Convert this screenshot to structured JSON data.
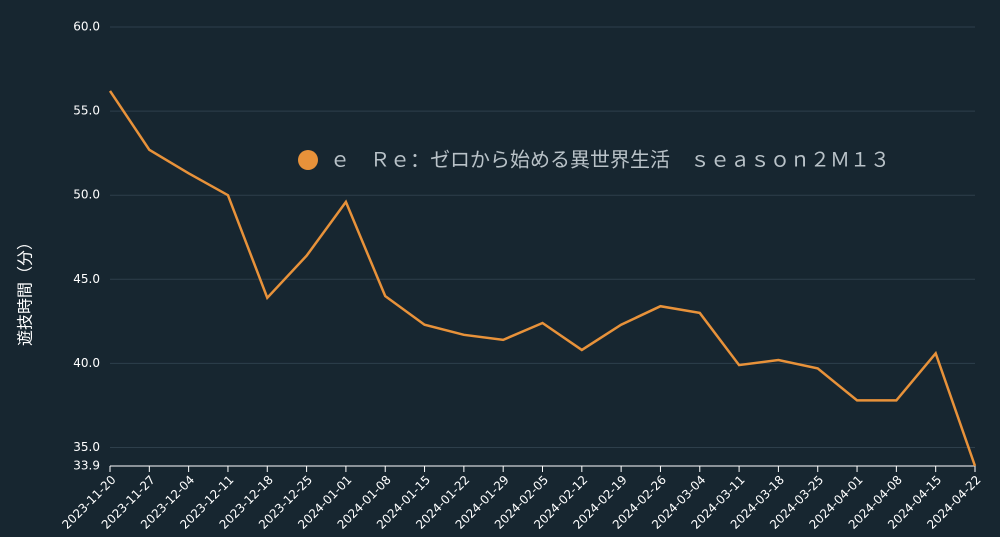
{
  "chart_data": {
    "type": "line",
    "y_label": "遊技時間（分）",
    "x": [
      "2023-11-20",
      "2023-11-27",
      "2023-12-04",
      "2023-12-11",
      "2023-12-18",
      "2023-12-25",
      "2024-01-01",
      "2024-01-08",
      "2024-01-15",
      "2024-01-22",
      "2024-01-29",
      "2024-02-05",
      "2024-02-12",
      "2024-02-19",
      "2024-02-26",
      "2024-03-04",
      "2024-03-11",
      "2024-03-18",
      "2024-03-25",
      "2024-04-01",
      "2024-04-08",
      "2024-04-15",
      "2024-04-22"
    ],
    "series": [
      {
        "name": "ｅ　Ｒｅ：ゼロから始める異世界生活　ｓｅａｓｏｎ２Ｍ１３",
        "color": "#e8923a",
        "values": [
          56.2,
          52.7,
          51.3,
          50.0,
          43.9,
          46.4,
          49.6,
          44.0,
          42.3,
          41.7,
          41.4,
          42.4,
          40.8,
          42.3,
          43.4,
          43.0,
          39.9,
          40.2,
          39.7,
          37.8,
          37.8,
          40.6,
          33.9
        ]
      }
    ],
    "ylim": [
      33.9,
      60
    ],
    "yticks": [
      33.9,
      {
        "value": 35,
        "label": "35.0"
      },
      {
        "value": 40,
        "label": "40.0"
      },
      {
        "value": 45,
        "label": "45.0"
      },
      {
        "value": 50,
        "label": "50.0"
      },
      {
        "value": 55,
        "label": "55.0"
      },
      {
        "value": 60,
        "label": "60.0"
      }
    ],
    "grid": true
  }
}
